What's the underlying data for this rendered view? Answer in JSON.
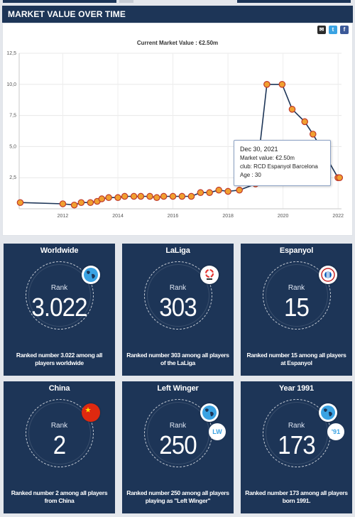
{
  "section_title": "MARKET VALUE OVER TIME",
  "share": {
    "mail_icon": "mail-icon",
    "twitter_icon": "twitter-icon",
    "facebook_icon": "facebook-icon"
  },
  "chart": {
    "subtitle": "Current Market Value : €2.50m",
    "tooltip": {
      "date": "Dec 30, 2021",
      "market_value": "Market value: €2.50m",
      "club": "club: RCD Espanyol Barcelona",
      "age": "Age : 30"
    }
  },
  "chart_data": {
    "type": "line",
    "title": "",
    "xlabel": "",
    "ylabel": "",
    "xlim": [
      "2010-06-01",
      "2022-02-15"
    ],
    "ylim": [
      0,
      12.5
    ],
    "y_ticks": [
      "12,5",
      "10,0",
      "7,5",
      "5,0",
      "2,5"
    ],
    "x_ticks": [
      "2012",
      "2014",
      "2016",
      "2018",
      "2020",
      "2022"
    ],
    "grid": true,
    "series": [
      {
        "points": [
          [
            "2010-06-15",
            0.5
          ],
          [
            "2012-01-01",
            0.4
          ],
          [
            "2012-06-01",
            0.3
          ],
          [
            "2012-09-01",
            0.5
          ],
          [
            "2013-01-01",
            0.5
          ],
          [
            "2013-04-01",
            0.6
          ],
          [
            "2013-06-01",
            0.8
          ],
          [
            "2013-09-01",
            0.9
          ],
          [
            "2014-01-01",
            0.9
          ],
          [
            "2014-04-01",
            1.0
          ],
          [
            "2014-08-01",
            1.0
          ],
          [
            "2014-11-01",
            1.0
          ],
          [
            "2015-03-01",
            1.0
          ],
          [
            "2015-06-01",
            0.9
          ],
          [
            "2015-09-01",
            1.0
          ],
          [
            "2016-01-01",
            1.0
          ],
          [
            "2016-05-01",
            1.0
          ],
          [
            "2016-09-01",
            1.0
          ],
          [
            "2017-01-01",
            1.3
          ],
          [
            "2017-05-01",
            1.3
          ],
          [
            "2017-09-01",
            1.5
          ],
          [
            "2018-01-01",
            1.4
          ],
          [
            "2018-06-01",
            1.5
          ],
          [
            "2019-01-01",
            2.0
          ],
          [
            "2019-06-01",
            10.0
          ],
          [
            "2019-12-20",
            10.0
          ],
          [
            "2020-05-01",
            8.0
          ],
          [
            "2020-10-15",
            7.0
          ],
          [
            "2021-02-01",
            6.0
          ],
          [
            "2021-12-30",
            2.5
          ],
          [
            "2022-01-20",
            2.5
          ]
        ]
      }
    ]
  },
  "cards": [
    {
      "title": "Worldwide",
      "rank_label": "Rank",
      "rank": "3.022",
      "desc": "Ranked number 3.022 among all players worldwide",
      "icon": "globe-icon"
    },
    {
      "title": "LaLiga",
      "rank_label": "Rank",
      "rank": "303",
      "desc": "Ranked number 303 among all players of the LaLiga",
      "icon": "laliga-logo-icon"
    },
    {
      "title": "Espanyol",
      "rank_label": "Rank",
      "rank": "15",
      "desc": "Ranked number 15 among all players at Espanyol",
      "icon": "espanyol-crest-icon"
    },
    {
      "title": "China",
      "rank_label": "Rank",
      "rank": "2",
      "desc": "Ranked number 2 among all players from China",
      "icon": "china-flag-icon"
    },
    {
      "title": "Left Winger",
      "rank_label": "Rank",
      "rank": "250",
      "desc": "Ranked number 250 among all players playing as \"Left Winger\"",
      "icon": "globe-icon",
      "tag": "LW"
    },
    {
      "title": "Year 1991",
      "rank_label": "Rank",
      "rank": "173",
      "desc": "Ranked number 173 among all players born 1991.",
      "icon": "globe-icon",
      "tag": "'91"
    }
  ]
}
